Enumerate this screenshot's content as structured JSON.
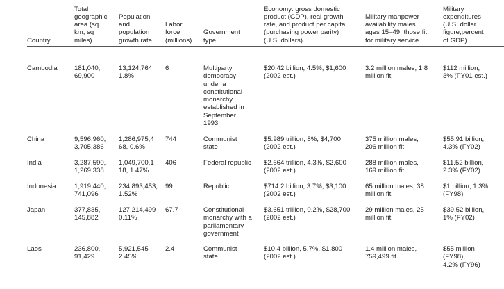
{
  "headers": [
    "Country",
    "Total\ngeographic\narea (sq\nkm, sq\nmiles)",
    "Population\nand\npopulation\ngrowth rate",
    "Labor\nforce\n(millions)",
    "Government\ntype",
    "Economy: gross domestic\nproduct (GDP), real growth\nrate, and product per capita\n(purchasing power parity)\n(U.S. dollars)",
    "Military manpower\navailability males\nages 15–49, those fit\nfor military service",
    "Military\nexpenditures\n(U.S. dollar\nfigure,percent\nof GDP)"
  ],
  "rows": [
    [
      "Cambodia",
      "181,040,\n69,900",
      "13,124,764\n1.8%",
      "6",
      "Multiparty\ndemocracy\nunder a\nconstitutional\nmonarchy\nestablished in\nSeptember\n1993",
      "$20.42 billion, 4.5%, $1,600\n(2002 est.)",
      "3.2 million males, 1.8\nmillion fit",
      "$112 million,\n3%  (FY01 est.)"
    ],
    [
      "China",
      "9,596,960,\n3,705,386",
      "1,286,975,4\n68, 0.6%",
      "744",
      "Communist\nstate",
      "$5.989 trillion, 8%, $4,700\n(2002 est.)",
      "375 million males,\n206 million fit",
      "$55.91 billion,\n4.3% (FY02)"
    ],
    [
      "India",
      "3,287,590,\n1,269,338",
      "1,049,700,1\n18, 1.47%",
      "406",
      "Federal republic",
      "$2.664 trillion, 4.3%, $2,600\n(2002 est.)",
      "288 million males,\n169 million fit",
      "$11.52 billion,\n2.3% (FY02)"
    ],
    [
      "Indonesia",
      "1,919,440,\n741,096",
      "234,893,453,\n1.52%",
      "99",
      "Republic",
      "$714.2 billion, 3.7%, $3,100\n(2002 est.)",
      "65 million males, 38\nmillion fit",
      "$1 billion, 1.3%\n(FY98)"
    ],
    [
      "Japan",
      "377,835,\n145,882",
      "127,214,499\n0.11%",
      "67.7",
      "Constitutional\nmonarchy with a\nparliamentary\ngovernment",
      "$3.651 trillion, 0.2%, $28,700\n(2002 est.)",
      "29 million males, 25\nmillion fit",
      "$39.52 billion,\n1% (FY02)"
    ],
    [
      "Laos",
      "236,800,\n91,429",
      "5,921,545\n2.45%",
      "2.4",
      "Communist\nstate",
      "$10.4 billion, 5.7%, $1,800\n(2002 est.)",
      "1.4 million males,\n759,499 fit",
      "$55 million\n(FY98),\n4.2% (FY96)"
    ]
  ]
}
